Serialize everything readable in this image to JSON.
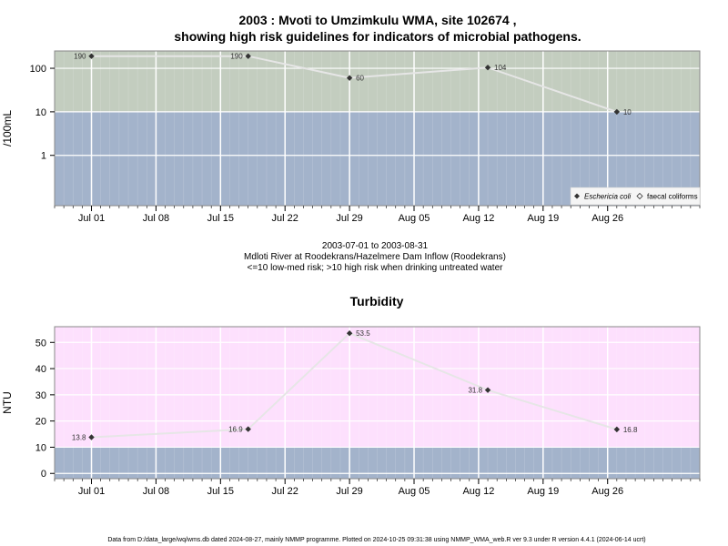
{
  "footer": "Data from D:/data_large/wq/wms.db dated 2024-08-27, mainly NMMP programme. Plotted on 2024-10-25 09:31:38 using NMMP_WMA_web.R ver 9.3 under R version 4.4.1 (2024-06-14 ucrt)",
  "colors": {
    "low_band": "#a3b3cb",
    "micro_high_band": "#c3cdbf",
    "turb_high_band": "#fde0fd",
    "gridline": "#ffffff",
    "series_line": "#e6e6e6",
    "point": "#333333"
  },
  "chart_data": [
    {
      "type": "line",
      "title": "2003 : Mvoti to Umzimkulu WMA, site 102674 ,",
      "subtitle": "showing high risk guidelines for indicators of microbial pathogens.",
      "ylabel": "/100mL",
      "yscale": "log",
      "ylim": [
        0.07,
        250
      ],
      "xlim": [
        "2003-06-27",
        "2003-09-05"
      ],
      "x_ticks": [
        "Jul 01",
        "Jul 08",
        "Jul 15",
        "Jul 22",
        "Jul 29",
        "Aug 05",
        "Aug 12",
        "Aug 19",
        "Aug 26"
      ],
      "x_tick_dates": [
        "2003-07-01",
        "2003-07-08",
        "2003-07-15",
        "2003-07-22",
        "2003-07-29",
        "2003-08-05",
        "2003-08-12",
        "2003-08-19",
        "2003-08-26"
      ],
      "y_ticks": [
        "1",
        "10",
        "100"
      ],
      "y_tick_values": [
        1,
        10,
        100
      ],
      "threshold": 10,
      "caption": [
        "2003-07-01 to 2003-08-31",
        "Mdloti River at Roodekrans/Hazelmere Dam Inflow (Roodekrans)",
        "<=10 low-med risk; >10 high risk when drinking untreated water"
      ],
      "legend": [
        "Eschericia coli",
        "faecal coliforms"
      ],
      "legend_position": "bottom-right",
      "grid": true,
      "series": [
        {
          "name": "Eschericia coli",
          "x": [
            "2003-07-01",
            "2003-07-18",
            "2003-07-29",
            "2003-08-13",
            "2003-08-27"
          ],
          "values": [
            190,
            190,
            60,
            104,
            10
          ],
          "labels": [
            "190",
            "190",
            "60",
            "104",
            "10"
          ]
        }
      ]
    },
    {
      "type": "line",
      "title": "Turbidity",
      "ylabel": "NTU",
      "ylim": [
        -2,
        56
      ],
      "xlim": [
        "2003-06-27",
        "2003-09-05"
      ],
      "x_ticks": [
        "Jul 01",
        "Jul 08",
        "Jul 15",
        "Jul 22",
        "Jul 29",
        "Aug 05",
        "Aug 12",
        "Aug 19",
        "Aug 26"
      ],
      "x_tick_dates": [
        "2003-07-01",
        "2003-07-08",
        "2003-07-15",
        "2003-07-22",
        "2003-07-29",
        "2003-08-05",
        "2003-08-12",
        "2003-08-19",
        "2003-08-26"
      ],
      "y_ticks": [
        "0",
        "10",
        "20",
        "30",
        "40",
        "50"
      ],
      "y_tick_values": [
        0,
        10,
        20,
        30,
        40,
        50
      ],
      "threshold": 10,
      "grid": true,
      "series": [
        {
          "x": [
            "2003-07-01",
            "2003-07-18",
            "2003-07-29",
            "2003-08-13",
            "2003-08-27"
          ],
          "values": [
            13.8,
            16.9,
            53.5,
            31.8,
            16.8
          ],
          "labels": [
            "13.8",
            "16.9",
            "53.5",
            "31.8",
            "16.8"
          ]
        }
      ]
    }
  ]
}
